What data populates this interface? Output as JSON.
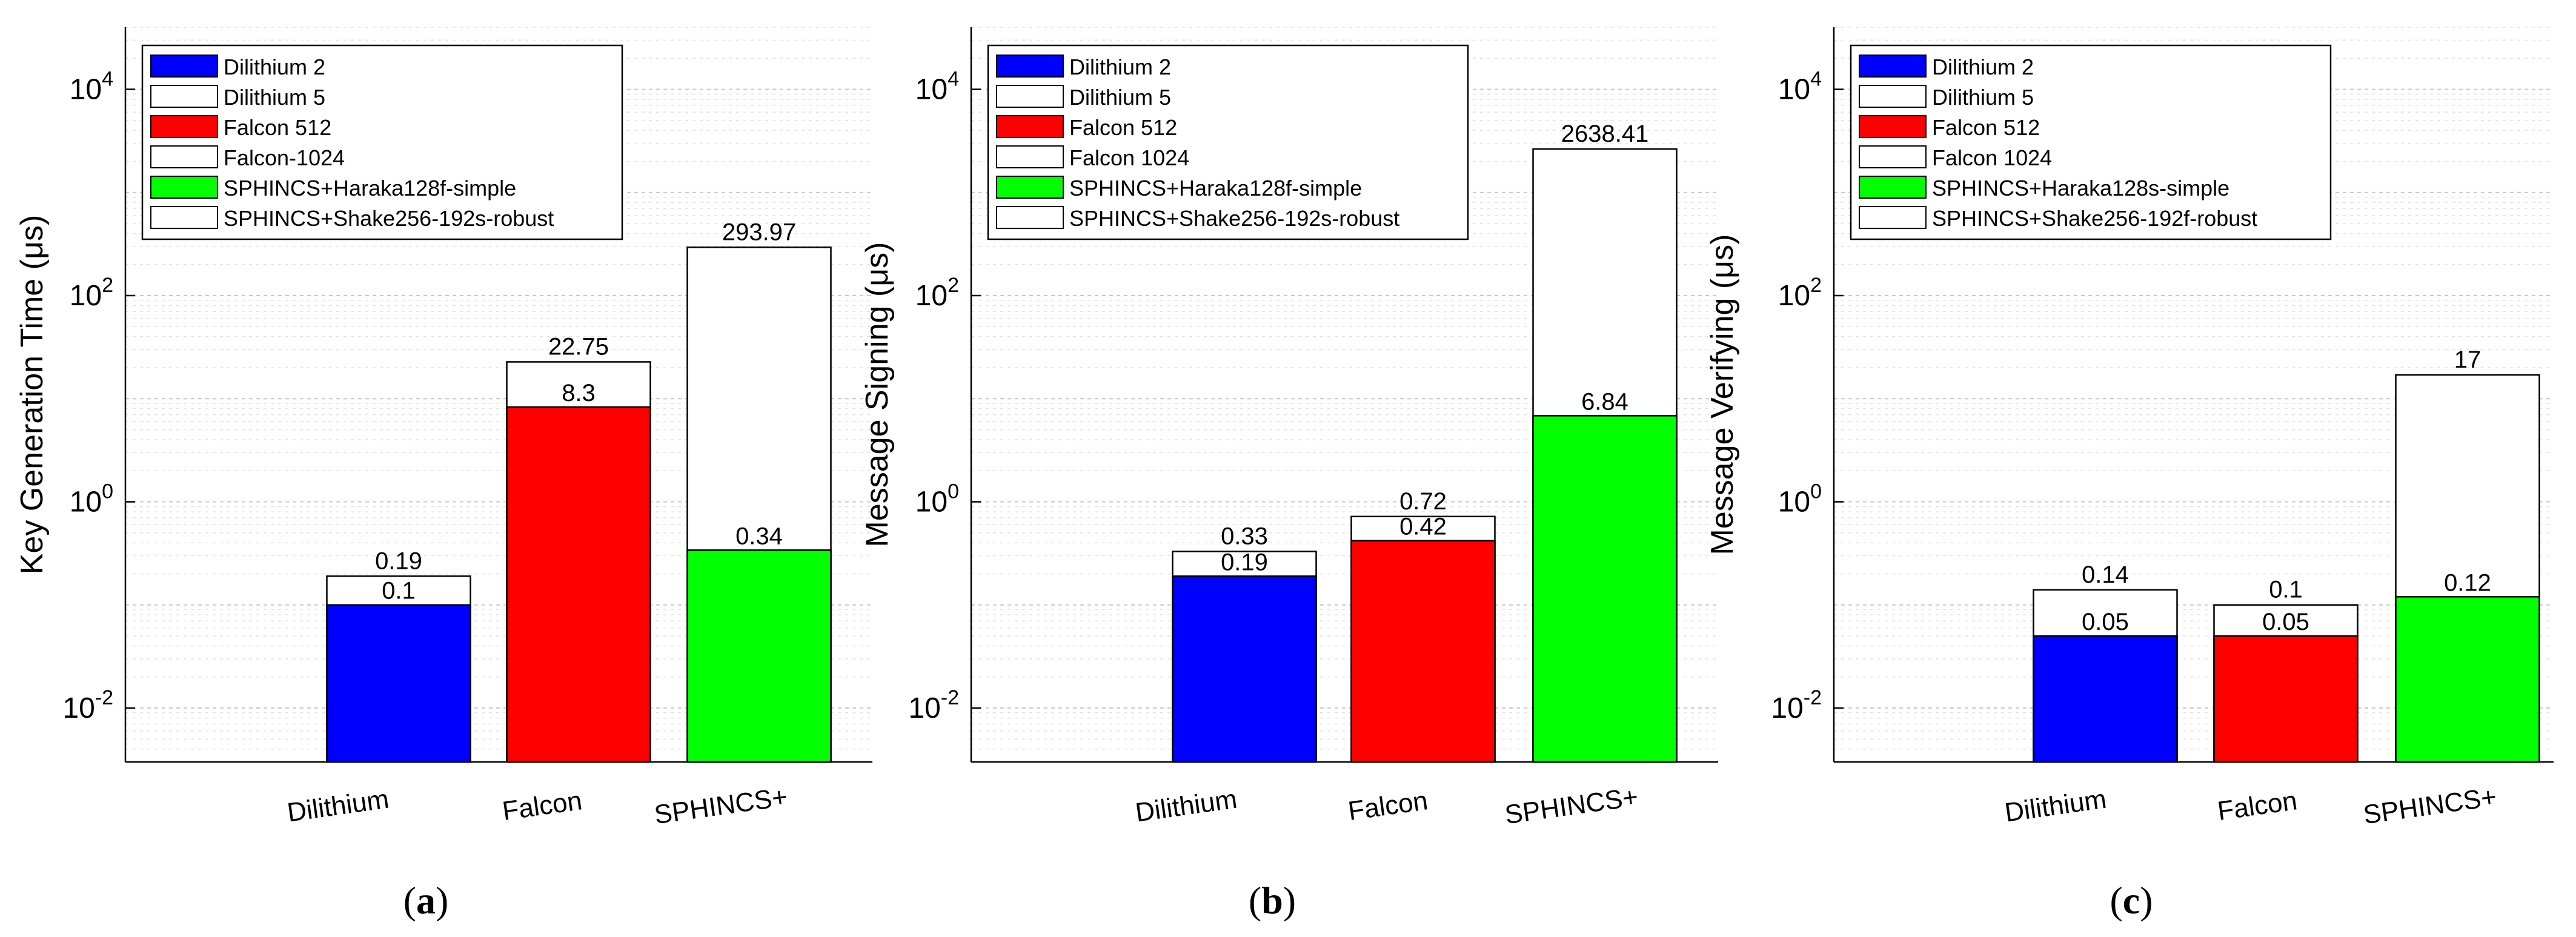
{
  "chart_data": [
    {
      "type": "bar",
      "subplot_label": "(a)",
      "ylabel": "Key Generation Time (μs)",
      "yscale": "log",
      "ylim": [
        0.003,
        40000
      ],
      "y_ticks": [
        0.01,
        1,
        100,
        10000
      ],
      "y_tick_labels": [
        {
          "base": "10",
          "exp": "-2"
        },
        {
          "base": "10",
          "exp": "0"
        },
        {
          "base": "10",
          "exp": "2"
        },
        {
          "base": "10",
          "exp": "4"
        }
      ],
      "categories": [
        "Dilithium",
        "Falcon",
        "SPHINCS+"
      ],
      "bars": [
        {
          "front": 0.1,
          "front_label": "0.1",
          "back": 0.19,
          "back_label": "0.19",
          "color": "#0000ff"
        },
        {
          "front": 8.3,
          "front_label": "8.3",
          "back": 22.75,
          "back_label": "22.75",
          "color": "#ff0000"
        },
        {
          "front": 0.34,
          "front_label": "0.34",
          "back": 293.97,
          "back_label": "293.97",
          "color": "#00ff00"
        }
      ],
      "legend": [
        {
          "label": "Dilithium 2",
          "color": "#0000ff"
        },
        {
          "label": "Dilithium 5",
          "color": "#ffffff"
        },
        {
          "label": "Falcon 512",
          "color": "#ff0000"
        },
        {
          "label": "Falcon-1024",
          "color": "#ffffff"
        },
        {
          "label": "SPHINCS+Haraka128f-simple",
          "color": "#00ff00"
        },
        {
          "label": "SPHINCS+Shake256-192s-robust",
          "color": "#ffffff"
        }
      ]
    },
    {
      "type": "bar",
      "subplot_label": "(b)",
      "ylabel": "Message Signing (μs)",
      "yscale": "log",
      "ylim": [
        0.003,
        40000
      ],
      "y_ticks": [
        0.01,
        1,
        100,
        10000
      ],
      "y_tick_labels": [
        {
          "base": "10",
          "exp": "-2"
        },
        {
          "base": "10",
          "exp": "0"
        },
        {
          "base": "10",
          "exp": "2"
        },
        {
          "base": "10",
          "exp": "4"
        }
      ],
      "categories": [
        "Dilithium",
        "Falcon",
        "SPHINCS+"
      ],
      "bars": [
        {
          "front": 0.19,
          "front_label": "0.19",
          "back": 0.33,
          "back_label": "0.33",
          "color": "#0000ff"
        },
        {
          "front": 0.42,
          "front_label": "0.42",
          "back": 0.72,
          "back_label": "0.72",
          "color": "#ff0000"
        },
        {
          "front": 6.84,
          "front_label": "6.84",
          "back": 2638.41,
          "back_label": "2638.41",
          "color": "#00ff00"
        }
      ],
      "legend": [
        {
          "label": "Dilithium 2",
          "color": "#0000ff"
        },
        {
          "label": "Dilithium 5",
          "color": "#ffffff"
        },
        {
          "label": "Falcon 512",
          "color": "#ff0000"
        },
        {
          "label": "Falcon 1024",
          "color": "#ffffff"
        },
        {
          "label": "SPHINCS+Haraka128f-simple",
          "color": "#00ff00"
        },
        {
          "label": "SPHINCS+Shake256-192s-robust",
          "color": "#ffffff"
        }
      ]
    },
    {
      "type": "bar",
      "subplot_label": "(c)",
      "ylabel": "Message Verifying (μs)",
      "yscale": "log",
      "ylim": [
        0.003,
        40000
      ],
      "y_ticks": [
        0.01,
        1,
        100,
        10000
      ],
      "y_tick_labels": [
        {
          "base": "10",
          "exp": "-2"
        },
        {
          "base": "10",
          "exp": "0"
        },
        {
          "base": "10",
          "exp": "2"
        },
        {
          "base": "10",
          "exp": "4"
        }
      ],
      "categories": [
        "Dilithium",
        "Falcon",
        "SPHINCS+"
      ],
      "bars": [
        {
          "front": 0.05,
          "front_label": "0.05",
          "back": 0.14,
          "back_label": "0.14",
          "color": "#0000ff"
        },
        {
          "front": 0.05,
          "front_label": "0.05",
          "back": 0.1,
          "back_label": "0.1",
          "color": "#ff0000"
        },
        {
          "front": 0.12,
          "front_label": "0.12",
          "back": 17,
          "back_label": "17",
          "color": "#00ff00"
        }
      ],
      "legend": [
        {
          "label": "Dilithium 2",
          "color": "#0000ff"
        },
        {
          "label": "Dilithium 5",
          "color": "#ffffff"
        },
        {
          "label": "Falcon 512",
          "color": "#ff0000"
        },
        {
          "label": "Falcon 1024",
          "color": "#ffffff"
        },
        {
          "label": "SPHINCS+Haraka128s-simple",
          "color": "#00ff00"
        },
        {
          "label": "SPHINCS+Shake256-192f-robust",
          "color": "#ffffff"
        }
      ]
    }
  ]
}
